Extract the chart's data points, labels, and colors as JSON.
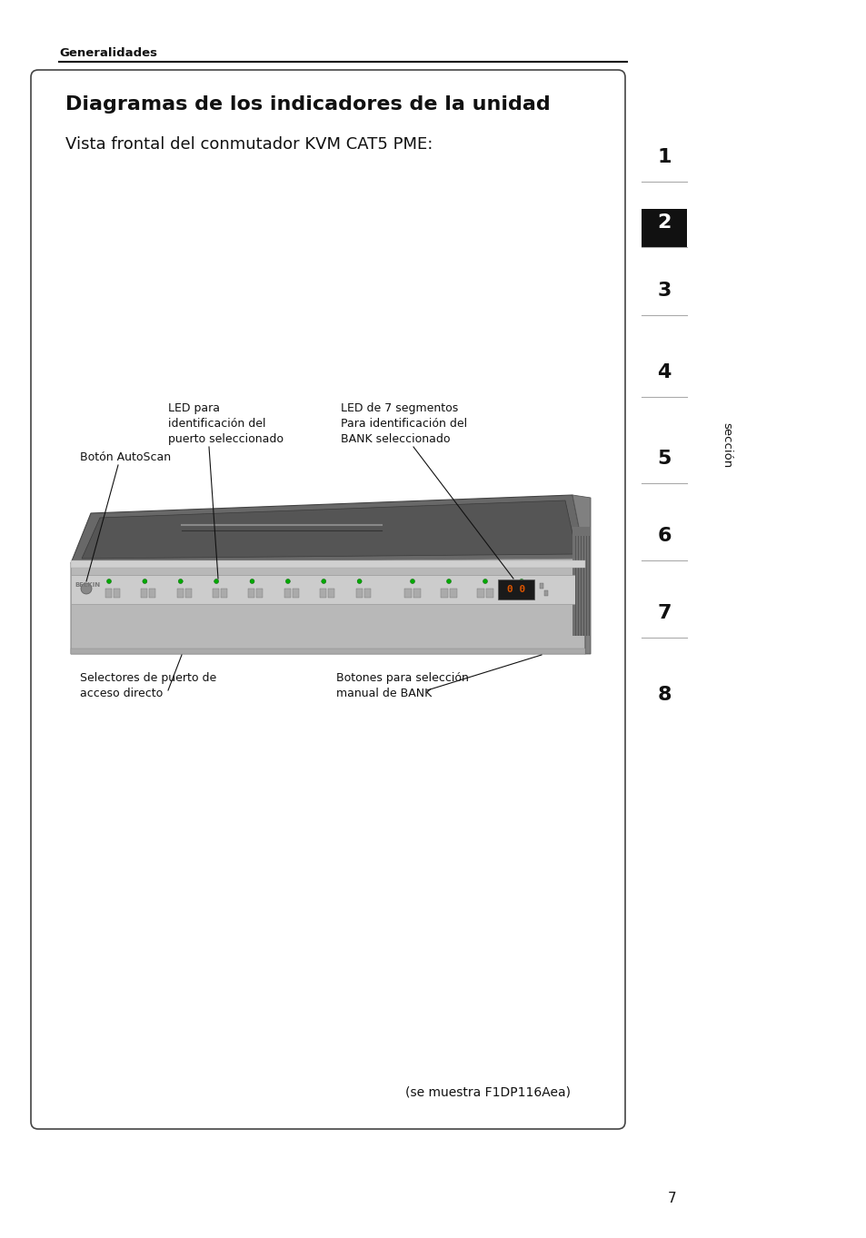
{
  "page_bg": "#ffffff",
  "header_text": "Generalidades",
  "title": "Diagramas de los indicadores de la unidad",
  "subtitle": "Vista frontal del conmutador KVM CAT5 PME:",
  "caption": "(se muestra F1DP116Aea)",
  "label1": "Botón AutoScan",
  "label2": "LED para\nidentificación del\npuerto seleccionado",
  "label3": "LED de 7 segmentos\nPara identificación del\nBANK seleccionado",
  "label4": "Selectores de puerto de\nacceso directo",
  "label5": "Botones para selección\nmanual de BANK",
  "sidebar_numbers": [
    "1",
    "2",
    "3",
    "4",
    "5",
    "6",
    "7",
    "8"
  ],
  "sidebar_active": 1,
  "sidebar_label": "sección",
  "page_number": "7"
}
